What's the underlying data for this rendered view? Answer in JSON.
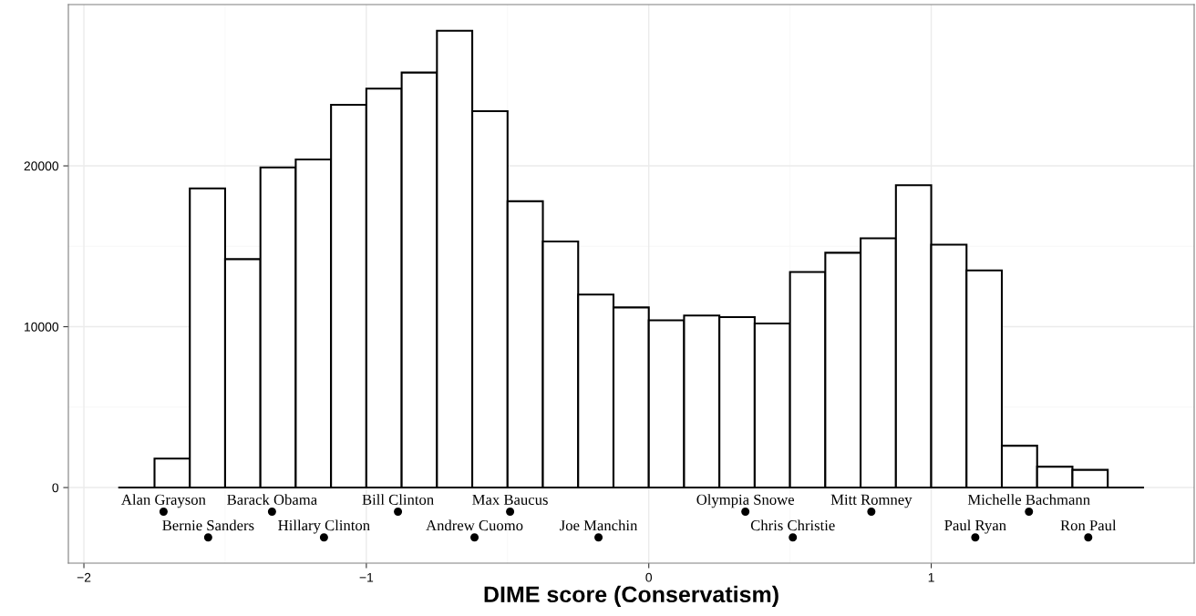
{
  "chart_data": {
    "type": "histogram",
    "xlabel": "DIME score (Conservatism)",
    "bins": [
      -1.875,
      -1.75,
      -1.625,
      -1.5,
      -1.375,
      -1.25,
      -1.125,
      -1.0,
      -0.875,
      -0.75,
      -0.625,
      -0.5,
      -0.375,
      -0.25,
      -0.125,
      0,
      0.125,
      0.25,
      0.375,
      0.5,
      0.625,
      0.75,
      0.875,
      1.0,
      1.125,
      1.25,
      1.375,
      1.5,
      1.625,
      1.75
    ],
    "values": [
      0,
      1800,
      18600,
      14200,
      19900,
      20400,
      23800,
      24800,
      25800,
      28400,
      23400,
      17800,
      15300,
      12000,
      11200,
      10400,
      10700,
      10600,
      10200,
      13400,
      14600,
      15500,
      18800,
      15100,
      13500,
      2600,
      1300,
      1100,
      0
    ],
    "color": "#ffffff",
    "series": [
      {
        "type": "scatter",
        "color": "#000000",
        "x": [
          -1.718,
          -1.56,
          -1.334,
          -1.15,
          -0.888,
          -0.617,
          -0.491,
          -0.178,
          0.342,
          0.51,
          0.788,
          1.156,
          1.346,
          1.556
        ],
        "values": [
          -1500,
          -3100,
          -1500,
          -3100,
          -1500,
          -3100,
          -1500,
          -3100,
          -1500,
          -3100,
          -1500,
          -3100,
          -1500,
          -3100
        ],
        "value_labels": [
          "Alan Grayson",
          "Bernie Sanders",
          "Barack Obama",
          "Hillary Clinton",
          "Bill Clinton",
          "Andrew Cuomo",
          "Max Baucus",
          "Joe Manchin",
          "Olympia Snowe",
          "Chris Christie",
          "Mitt Romney",
          "Paul Ryan",
          "Michelle Bachmann",
          "Ron Paul"
        ]
      }
    ],
    "xlim": [
      -2.055,
      1.931
    ],
    "ylim": [
      -4700,
      30030
    ],
    "xticks": [
      {
        "value": -2,
        "label": "−2"
      },
      {
        "value": -1,
        "label": "−1"
      },
      0,
      1
    ],
    "yticks": [
      0,
      10000,
      20000
    ],
    "grid": true
  }
}
